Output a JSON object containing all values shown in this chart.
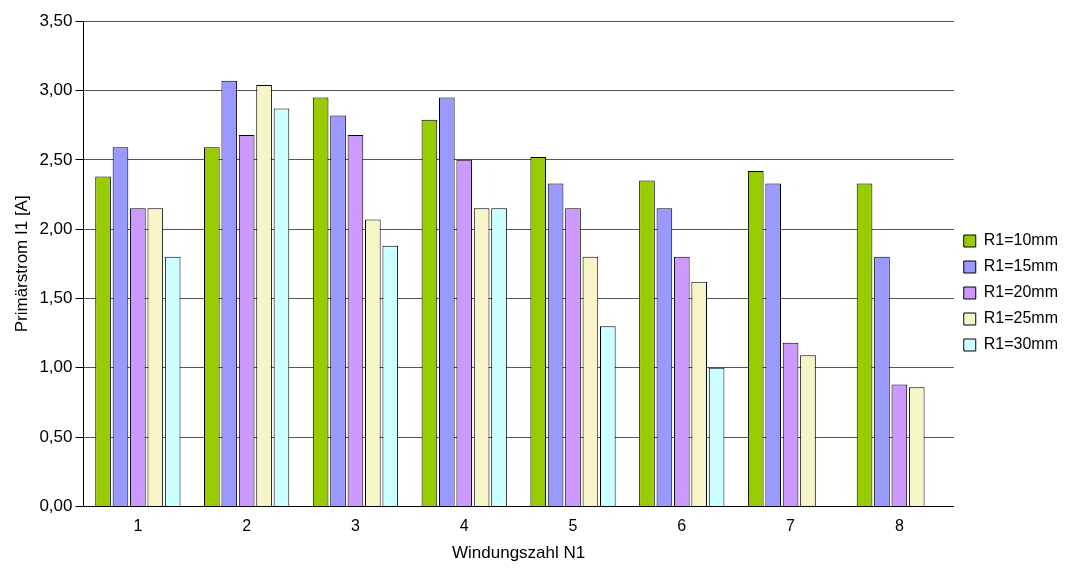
{
  "chart_data": {
    "type": "bar",
    "xlabel": "Windungszahl N1",
    "ylabel": "Primärstrom I1 [A]",
    "categories": [
      "1",
      "2",
      "3",
      "4",
      "5",
      "6",
      "7",
      "8"
    ],
    "series": [
      {
        "name": "R1=10mm",
        "color": "#99cc00",
        "values": [
          2.38,
          2.59,
          2.95,
          2.79,
          2.52,
          2.35,
          2.42,
          2.33
        ]
      },
      {
        "name": "R1=15mm",
        "color": "#9999ff",
        "values": [
          2.59,
          3.07,
          2.82,
          2.95,
          2.33,
          2.15,
          2.33,
          1.8
        ]
      },
      {
        "name": "R1=20mm",
        "color": "#cc99ff",
        "values": [
          2.15,
          2.68,
          2.68,
          2.5,
          2.15,
          1.8,
          1.18,
          0.88
        ]
      },
      {
        "name": "R1=25mm",
        "color": "#f5f5c8",
        "values": [
          2.15,
          3.04,
          2.07,
          2.15,
          1.8,
          1.62,
          1.09,
          0.86
        ]
      },
      {
        "name": "R1=30mm",
        "color": "#ccffff",
        "values": [
          1.8,
          2.87,
          1.88,
          2.15,
          1.3,
          1.0,
          null,
          null
        ]
      }
    ],
    "ylim": [
      0,
      3.5
    ],
    "yticks": [
      {
        "value": 0,
        "label": "0,00"
      },
      {
        "value": 0.5,
        "label": "0,50"
      },
      {
        "value": 1,
        "label": "1,00"
      },
      {
        "value": 1.5,
        "label": "1,50"
      },
      {
        "value": 2,
        "label": "2,00"
      },
      {
        "value": 2.5,
        "label": "2,50"
      },
      {
        "value": 3,
        "label": "3,00"
      },
      {
        "value": 3.5,
        "label": "3,50"
      }
    ],
    "grid": "y",
    "legend": "right"
  }
}
